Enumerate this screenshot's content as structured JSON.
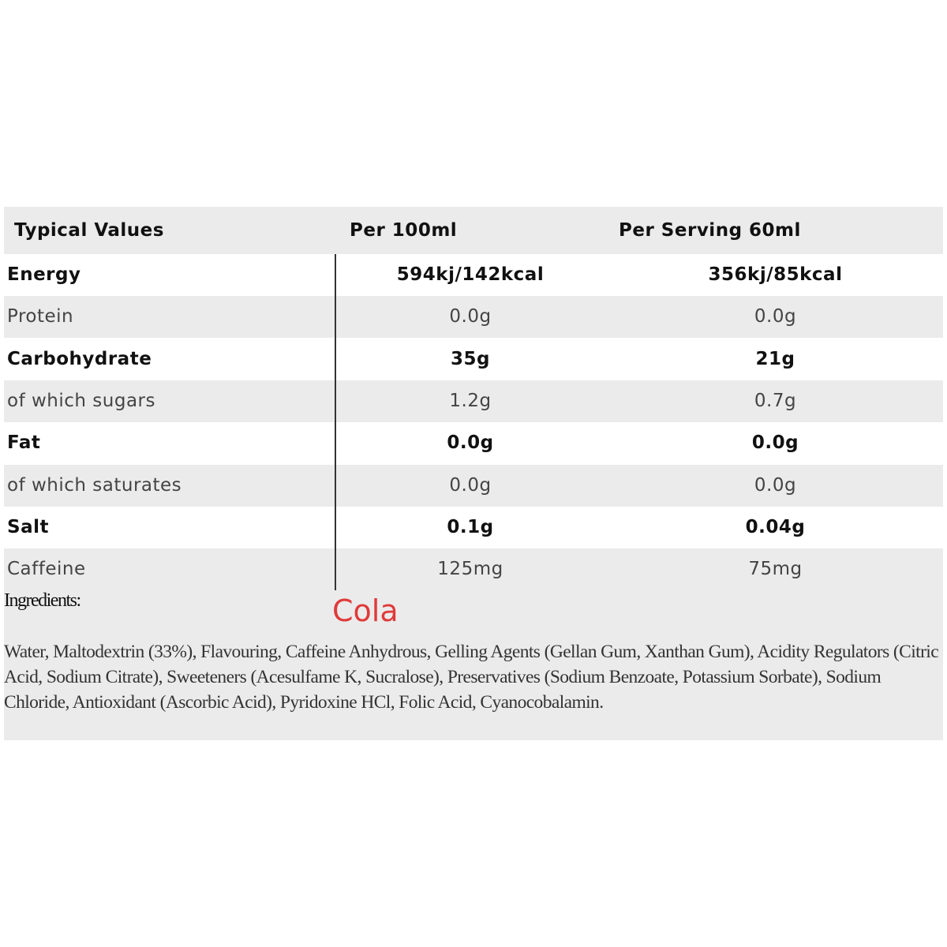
{
  "table": {
    "header": [
      "Typical Values",
      "Per 100ml",
      "Per Serving 60ml"
    ],
    "rows": [
      {
        "label": "Energy",
        "per_100ml": "594kj/142kcal",
        "per_serving": "356kj/85kcal",
        "bold": true
      },
      {
        "label": "Protein",
        "per_100ml": "0.0g",
        "per_serving": "0.0g",
        "bold": false
      },
      {
        "label": "Carbohydrate",
        "per_100ml": "35g",
        "per_serving": "21g",
        "bold": true
      },
      {
        "label": "of which sugars",
        "per_100ml": "1.2g",
        "per_serving": "0.7g",
        "bold": false
      },
      {
        "label": "Fat",
        "per_100ml": "0.0g",
        "per_serving": "0.0g",
        "bold": true
      },
      {
        "label": "of which saturates",
        "per_100ml": "0.0g",
        "per_serving": "0.0g",
        "bold": false
      },
      {
        "label": "Salt",
        "per_100ml": "0.1g",
        "per_serving": "0.04g",
        "bold": true
      },
      {
        "label": "Caffeine",
        "per_100ml": "125mg",
        "per_serving": "75mg",
        "bold": false
      }
    ]
  },
  "ingredients": {
    "heading": "Ingredients:",
    "flavour": "Cola",
    "text": "Water, Maltodextrin (33%), Flavouring, Caffeine Anhydrous, Gelling Agents (Gellan Gum, Xanthan Gum), Acidity Regulators (Citric Acid, Sodium Citrate), Sweeteners (Acesulfame K, Sucralose), Preservatives (Sodium Benzoate, Potassium Sorbate), Sodium Chloride, Antioxidant (Ascorbic Acid), Pyridoxine HCl, Folic Acid, Cyanocobalamin."
  }
}
